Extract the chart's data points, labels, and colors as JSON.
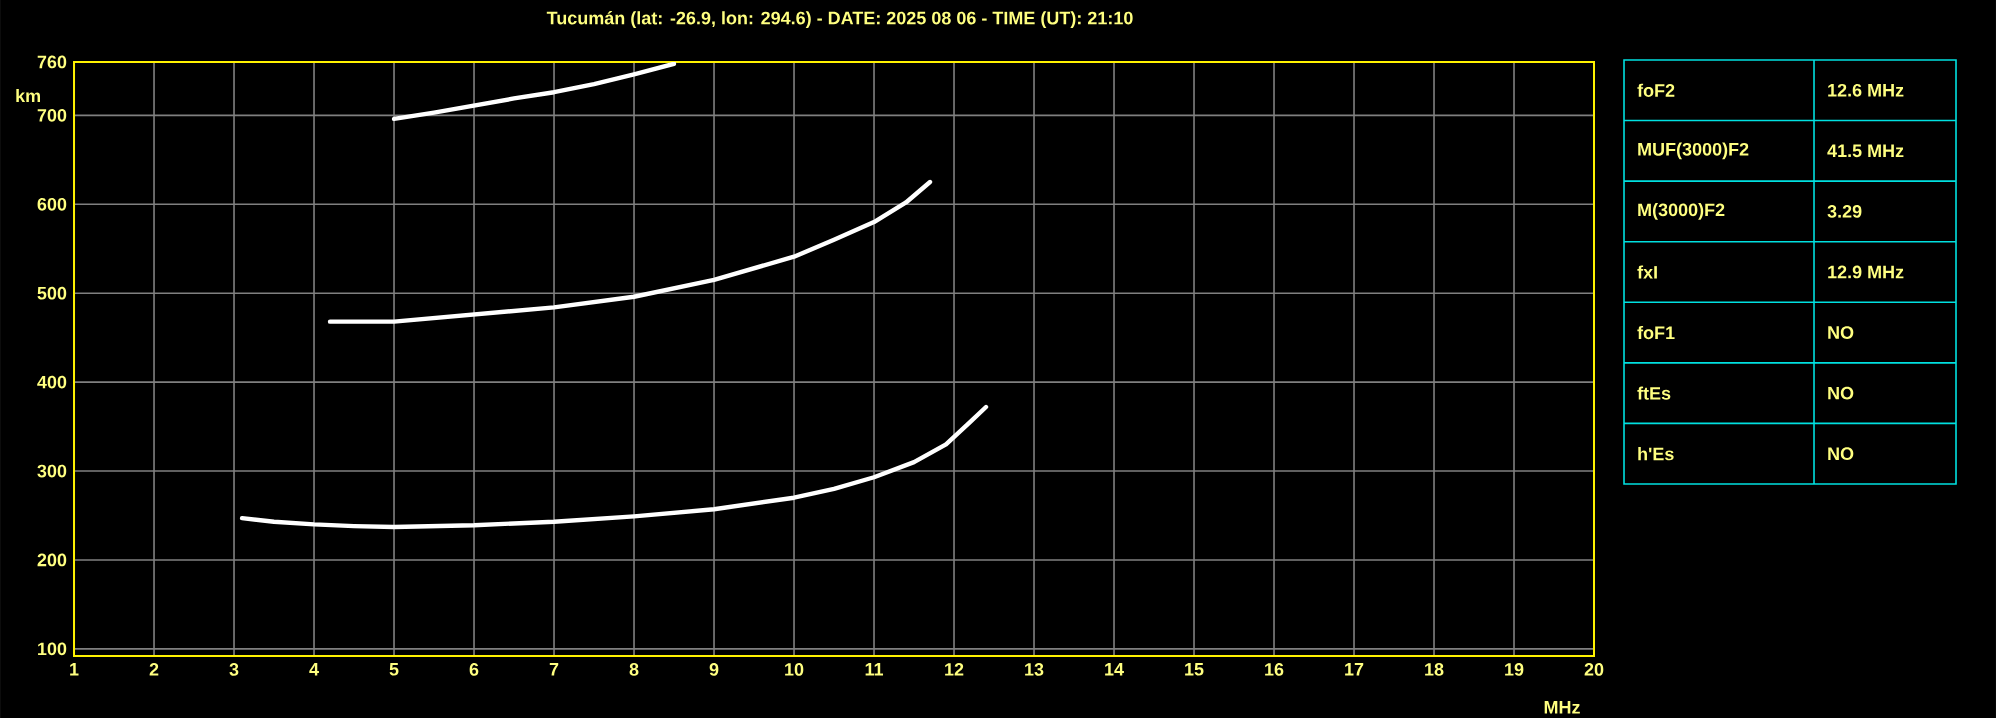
{
  "chart_data": [
    {
      "type": "line",
      "title": "Tucumán (lat: -26.9, lon: 294.6) - DATE: 2025 08 06 - TIME (UT): 21:10",
      "xlabel": "MHz",
      "ylabel": "km",
      "xlim": [
        1,
        20
      ],
      "ylim": [
        92,
        760
      ],
      "xticks": [
        1,
        2,
        3,
        4,
        5,
        6,
        7,
        8,
        9,
        10,
        11,
        12,
        13,
        14,
        15,
        16,
        17,
        18,
        19,
        20
      ],
      "yticks": [
        100,
        200,
        300,
        400,
        500,
        600,
        700,
        760
      ],
      "grid": true,
      "series": [
        {
          "color": "#ffffff",
          "x": [
            3.1,
            3.5,
            4.0,
            4.5,
            5.0,
            6.0,
            7.0,
            8.0,
            9.0,
            10.0,
            10.5,
            11.0,
            11.5,
            11.9,
            12.2,
            12.4
          ],
          "values": [
            247,
            243,
            240,
            238,
            237,
            239,
            243,
            249,
            257,
            270,
            280,
            293,
            310,
            330,
            355,
            372
          ]
        },
        {
          "color": "#ffffff",
          "x": [
            4.2,
            5.0,
            6.0,
            7.0,
            8.0,
            9.0,
            10.0,
            10.5,
            11.0,
            11.4,
            11.7
          ],
          "values": [
            468,
            468,
            476,
            484,
            496,
            515,
            541,
            560,
            580,
            602,
            625
          ]
        },
        {
          "color": "#ffffff",
          "x": [
            5.0,
            5.5,
            6.0,
            6.5,
            7.0,
            7.5,
            8.0,
            8.5
          ],
          "values": [
            696,
            703,
            711,
            719,
            726,
            735,
            746,
            758
          ]
        }
      ]
    },
    {
      "type": "other",
      "categories": [
        "foF2",
        "MUF(3000)F2",
        "M(3000)F2",
        "fxI",
        "foF1",
        "ftEs",
        "h'Es"
      ],
      "annotations": [
        "12.6 MHz",
        "41.5 MHz",
        "3.29",
        "12.9 MHz",
        "NO",
        "NO",
        "NO"
      ]
    }
  ]
}
